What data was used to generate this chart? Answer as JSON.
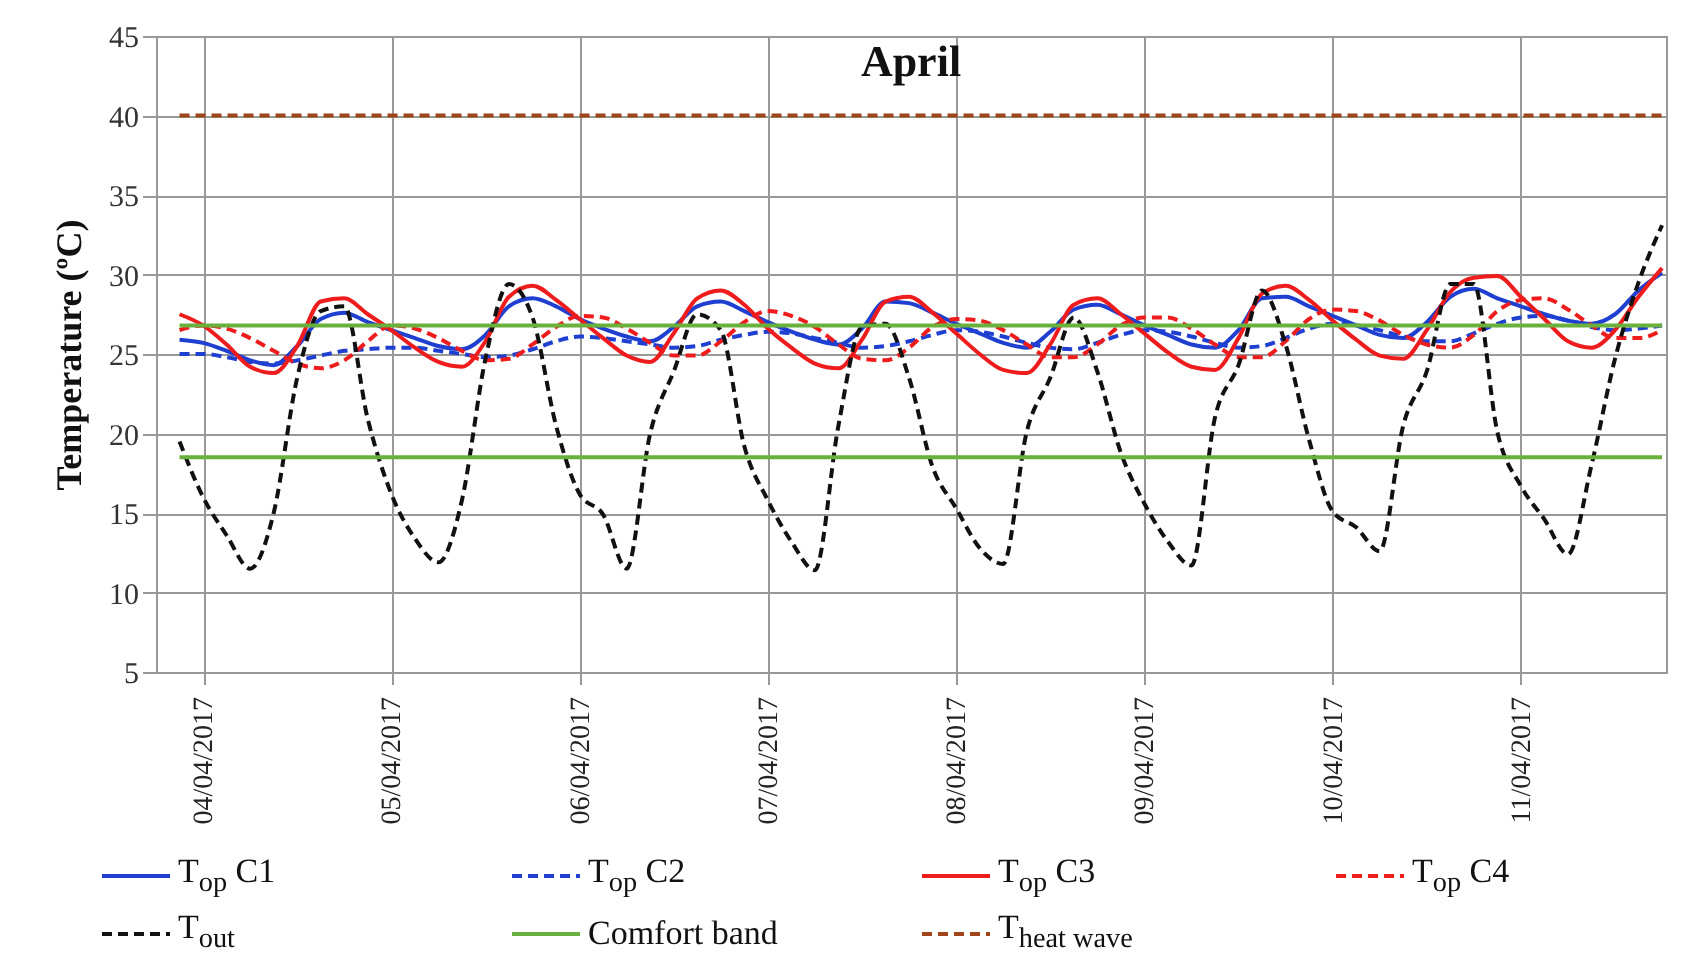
{
  "chart_data": {
    "type": "line",
    "title": "April",
    "ylabel": "Temperature (ºC)",
    "x": [
      "2017-04-03T21:00",
      "2017-04-04T00:00",
      "2017-04-04T03:00",
      "2017-04-04T06:00",
      "2017-04-04T09:00",
      "2017-04-04T12:00",
      "2017-04-04T15:00",
      "2017-04-04T18:00",
      "2017-04-04T21:00",
      "2017-04-05T00:00",
      "2017-04-05T03:00",
      "2017-04-05T06:00",
      "2017-04-05T09:00",
      "2017-04-05T12:00",
      "2017-04-05T15:00",
      "2017-04-05T18:00",
      "2017-04-05T21:00",
      "2017-04-06T00:00",
      "2017-04-06T03:00",
      "2017-04-06T06:00",
      "2017-04-06T09:00",
      "2017-04-06T12:00",
      "2017-04-06T15:00",
      "2017-04-06T18:00",
      "2017-04-06T21:00",
      "2017-04-07T00:00",
      "2017-04-07T03:00",
      "2017-04-07T06:00",
      "2017-04-07T09:00",
      "2017-04-07T12:00",
      "2017-04-07T15:00",
      "2017-04-07T18:00",
      "2017-04-07T21:00",
      "2017-04-08T00:00",
      "2017-04-08T03:00",
      "2017-04-08T06:00",
      "2017-04-08T09:00",
      "2017-04-08T12:00",
      "2017-04-08T15:00",
      "2017-04-08T18:00",
      "2017-04-08T21:00",
      "2017-04-09T00:00",
      "2017-04-09T03:00",
      "2017-04-09T06:00",
      "2017-04-09T09:00",
      "2017-04-09T12:00",
      "2017-04-09T15:00",
      "2017-04-09T18:00",
      "2017-04-09T21:00",
      "2017-04-10T00:00",
      "2017-04-10T03:00",
      "2017-04-10T06:00",
      "2017-04-10T09:00",
      "2017-04-10T12:00",
      "2017-04-10T15:00",
      "2017-04-10T18:00",
      "2017-04-10T21:00",
      "2017-04-11T00:00",
      "2017-04-11T03:00",
      "2017-04-11T06:00",
      "2017-04-11T09:00",
      "2017-04-11T12:00",
      "2017-04-11T15:00",
      "2017-04-11T18:00"
    ],
    "series": [
      {
        "name": "T$_{op}$ C1",
        "color": "#1f3fd0",
        "line_style": "solid",
        "values": [
          25.9,
          25.7,
          25.2,
          24.6,
          24.3,
          25.5,
          27.2,
          27.6,
          27.0,
          26.5,
          26.0,
          25.5,
          25.3,
          26.2,
          28.0,
          28.5,
          28.0,
          27.2,
          26.6,
          26.1,
          25.8,
          26.7,
          28.0,
          28.3,
          27.7,
          27.0,
          26.4,
          25.9,
          25.6,
          26.6,
          28.3,
          28.2,
          27.6,
          26.9,
          26.3,
          25.7,
          25.4,
          26.4,
          27.8,
          28.1,
          27.5,
          26.8,
          26.2,
          25.6,
          25.4,
          26.5,
          28.5,
          28.6,
          28.0,
          27.4,
          26.8,
          26.2,
          26.0,
          27.0,
          28.6,
          29.1,
          28.5,
          28.0,
          27.5,
          27.1,
          26.9,
          27.5,
          29.0,
          30.1
        ]
      },
      {
        "name": "T$_{op}$ C2",
        "color": "#1f3fd0",
        "line_style": "dashed",
        "values": [
          25.0,
          25.0,
          24.8,
          24.5,
          24.4,
          24.6,
          24.9,
          25.2,
          25.3,
          25.4,
          25.4,
          25.2,
          25.0,
          24.8,
          24.9,
          25.3,
          25.8,
          26.1,
          26.0,
          25.8,
          25.6,
          25.4,
          25.5,
          25.9,
          26.2,
          26.4,
          26.3,
          26.0,
          25.7,
          25.4,
          25.5,
          25.8,
          26.2,
          26.5,
          26.4,
          26.1,
          25.7,
          25.4,
          25.3,
          25.7,
          26.2,
          26.5,
          26.4,
          26.1,
          25.7,
          25.4,
          25.5,
          26.0,
          26.6,
          26.9,
          26.8,
          26.5,
          26.1,
          25.8,
          25.8,
          26.3,
          26.9,
          27.3,
          27.4,
          27.1,
          26.7,
          26.5,
          26.6,
          26.8
        ]
      },
      {
        "name": "T$_{op}$ C3",
        "color": "#ee1c1c",
        "line_style": "solid",
        "values": [
          27.5,
          26.8,
          25.6,
          24.2,
          23.8,
          25.5,
          28.3,
          28.5,
          27.5,
          26.5,
          25.4,
          24.5,
          24.2,
          25.8,
          28.6,
          29.3,
          28.4,
          27.2,
          26.0,
          24.9,
          24.5,
          26.3,
          28.5,
          29.0,
          28.1,
          26.6,
          25.4,
          24.4,
          24.1,
          25.9,
          28.3,
          28.6,
          27.6,
          26.3,
          25.0,
          24.0,
          23.8,
          25.6,
          28.1,
          28.5,
          27.5,
          26.3,
          25.1,
          24.2,
          24.0,
          26.0,
          28.8,
          29.3,
          28.4,
          27.1,
          25.9,
          24.9,
          24.7,
          26.5,
          28.9,
          29.8,
          29.9,
          28.6,
          27.2,
          25.8,
          25.4,
          26.5,
          28.6,
          30.4
        ]
      },
      {
        "name": "T$_{op}$ C4",
        "color": "#ee1c1c",
        "line_style": "dashed",
        "values": [
          26.5,
          26.8,
          26.6,
          26.0,
          25.2,
          24.4,
          24.1,
          24.6,
          25.8,
          26.8,
          26.6,
          26.0,
          25.2,
          24.6,
          24.7,
          25.6,
          26.7,
          27.4,
          27.3,
          26.6,
          25.7,
          24.9,
          24.9,
          25.8,
          27.0,
          27.7,
          27.4,
          26.7,
          25.6,
          24.7,
          24.6,
          25.4,
          26.7,
          27.2,
          27.1,
          26.5,
          25.6,
          24.8,
          24.8,
          25.6,
          26.8,
          27.3,
          27.3,
          26.6,
          25.6,
          24.8,
          24.8,
          25.8,
          27.2,
          27.8,
          27.7,
          27.1,
          26.2,
          25.6,
          25.4,
          26.2,
          27.7,
          28.4,
          28.5,
          27.8,
          26.8,
          26.0,
          26.0,
          26.5
        ]
      },
      {
        "name": "T$_{out}$",
        "color": "#111111",
        "line_style": "dashed",
        "values": [
          19.5,
          16.0,
          13.6,
          11.5,
          15.0,
          23.5,
          27.7,
          28.0,
          20.9,
          16.2,
          13.4,
          11.9,
          15.8,
          24.7,
          29.4,
          27.3,
          20.5,
          16.2,
          14.9,
          11.5,
          20.0,
          23.9,
          27.5,
          26.5,
          19.2,
          15.8,
          13.2,
          11.4,
          20.5,
          26.7,
          26.9,
          23.5,
          17.9,
          15.3,
          12.8,
          11.8,
          20.1,
          23.5,
          27.3,
          23.9,
          18.8,
          15.6,
          13.2,
          11.7,
          21.0,
          24.3,
          29.0,
          25.6,
          19.6,
          15.1,
          14.1,
          12.6,
          20.5,
          23.9,
          29.4,
          29.4,
          20.1,
          16.7,
          14.6,
          12.4,
          18.0,
          24.7,
          29.5,
          33.1
        ]
      },
      {
        "name": "Comfort band",
        "color": "#6ab03c",
        "line_style": "solid",
        "x": [
          "2017-04-03T21:00",
          "2017-04-11T18:00"
        ],
        "values": [
          26.8,
          26.8
        ]
      },
      {
        "color": "#6ab03c",
        "line_style": "solid",
        "x": [
          "2017-04-03T21:00",
          "2017-04-11T18:00"
        ],
        "values": [
          18.5,
          18.5
        ]
      },
      {
        "name": "T$_{heat wave}$",
        "color": "#a0451a",
        "line_style": "dashed",
        "x": [
          "2017-04-03T21:00",
          "2017-04-11T18:00"
        ],
        "values": [
          40,
          40
        ]
      }
    ],
    "xlim": [
      "2017-04-03T18:00",
      "2017-04-11T18:30"
    ],
    "xticks": [
      {
        "value": "2017-04-04",
        "label": "04/04/2017"
      },
      {
        "value": "2017-04-05",
        "label": "05/04/2017"
      },
      {
        "value": "2017-04-06",
        "label": "06/04/2017"
      },
      {
        "value": "2017-04-07",
        "label": "07/04/2017"
      },
      {
        "value": "2017-04-08",
        "label": "08/04/2017"
      },
      {
        "value": "2017-04-09",
        "label": "09/04/2017"
      },
      {
        "value": "2017-04-10",
        "label": "10/04/2017"
      },
      {
        "value": "2017-04-11",
        "label": "11/04/2017"
      }
    ],
    "ylim": [
      5,
      45
    ],
    "yticks": [
      5,
      10,
      15,
      20,
      25,
      30,
      35,
      40,
      45
    ],
    "grid": true,
    "legend": "bottom"
  }
}
